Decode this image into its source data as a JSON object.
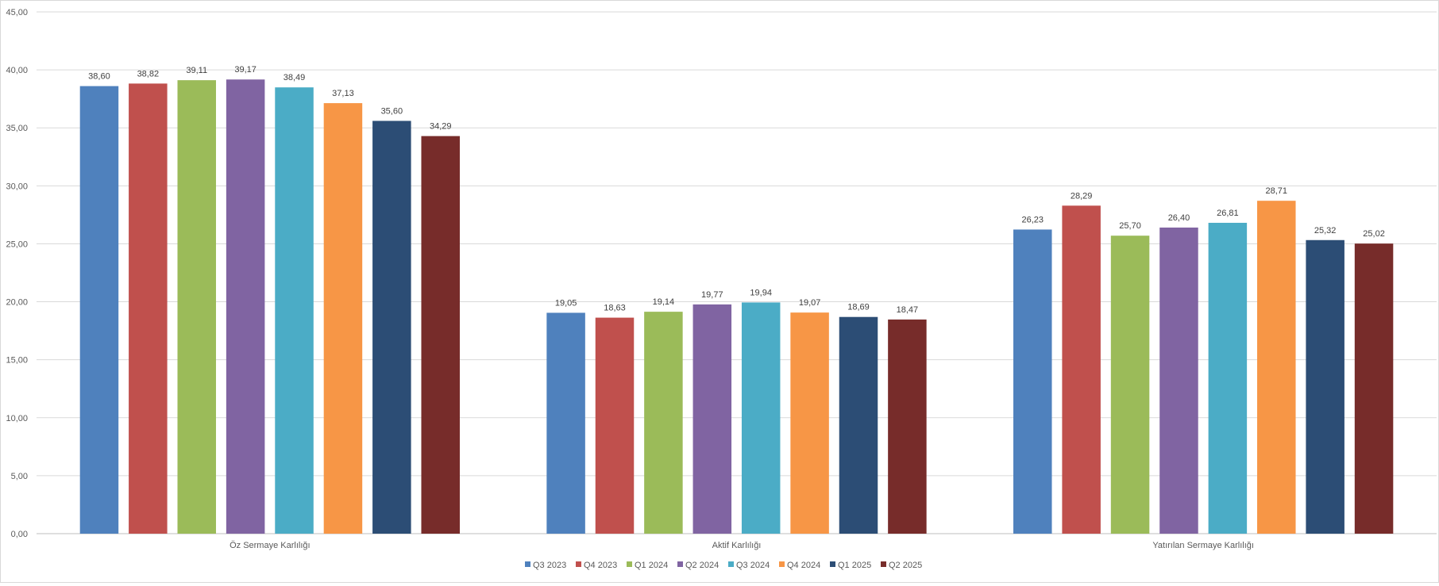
{
  "chart_data": {
    "type": "bar",
    "categories": [
      "Öz Sermaye Karlılığı",
      "Aktif Karlılığı",
      "Yatırılan Sermaye Karlılığı"
    ],
    "series": [
      {
        "name": "Q3 2023",
        "color": "#4F81BD",
        "values": [
          38.6,
          19.05,
          26.23
        ]
      },
      {
        "name": "Q4 2023",
        "color": "#C0504D",
        "values": [
          38.82,
          18.63,
          28.29
        ]
      },
      {
        "name": "Q1 2024",
        "color": "#9BBB59",
        "values": [
          39.11,
          19.14,
          25.7
        ]
      },
      {
        "name": "Q2 2024",
        "color": "#8064A2",
        "values": [
          39.17,
          19.77,
          26.4
        ]
      },
      {
        "name": "Q3 2024",
        "color": "#4BACC6",
        "values": [
          38.49,
          19.94,
          26.81
        ]
      },
      {
        "name": "Q4 2024",
        "color": "#F79646",
        "values": [
          37.13,
          19.07,
          28.71
        ]
      },
      {
        "name": "Q1 2025",
        "color": "#2C4D75",
        "values": [
          35.6,
          18.69,
          25.32
        ]
      },
      {
        "name": "Q2 2025",
        "color": "#772C2A",
        "values": [
          34.29,
          18.47,
          25.02
        ]
      }
    ],
    "ylim": [
      0,
      45
    ],
    "ytick_step": 5,
    "yticks": [
      "0,00",
      "5,00",
      "10,00",
      "15,00",
      "20,00",
      "25,00",
      "30,00",
      "35,00",
      "40,00",
      "45,00"
    ],
    "data_labels": [
      [
        "38,60",
        "19,05",
        "26,23"
      ],
      [
        "38,82",
        "18,63",
        "28,29"
      ],
      [
        "39,11",
        "19,14",
        "25,70"
      ],
      [
        "39,17",
        "19,77",
        "26,40"
      ],
      [
        "38,49",
        "19,94",
        "26,81"
      ],
      [
        "37,13",
        "19,07",
        "28,71"
      ],
      [
        "35,60",
        "18,69",
        "25,32"
      ],
      [
        "34,29",
        "18,47",
        "25,02"
      ]
    ],
    "grid": true,
    "legend_position": "bottom",
    "title": "",
    "xlabel": "",
    "ylabel": ""
  }
}
